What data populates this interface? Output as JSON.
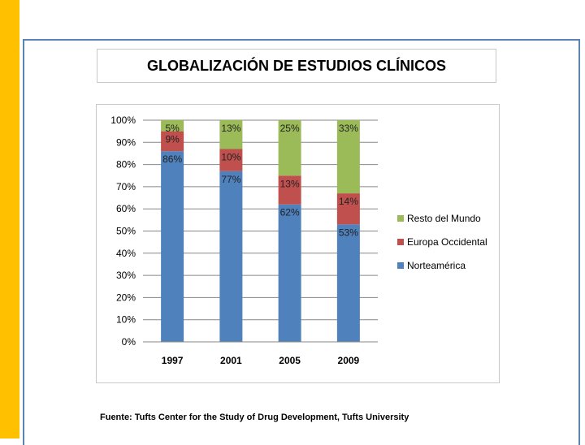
{
  "slide": {
    "title": "GLOBALIZACIÓN DE ESTUDIOS CLÍNICOS",
    "source": "Fuente: Tufts Center for the Study of Drug Development, Tufts University"
  },
  "colors": {
    "sidebar": "#FFC000",
    "frame": "#5B83B5"
  },
  "chart_data": {
    "type": "bar",
    "stacked": true,
    "title": "",
    "xlabel": "",
    "ylabel": "",
    "ylim": [
      0,
      100
    ],
    "yticks": [
      0,
      10,
      20,
      30,
      40,
      50,
      60,
      70,
      80,
      90,
      100
    ],
    "ytick_suffix": "%",
    "grid": true,
    "legend_position": "right",
    "categories": [
      "1997",
      "2001",
      "2005",
      "2009"
    ],
    "series": [
      {
        "name": "Norteamérica",
        "color": "#4F81BD",
        "values": [
          86,
          77,
          62,
          53
        ]
      },
      {
        "name": "Europa Occidental",
        "color": "#C0504D",
        "values": [
          9,
          10,
          13,
          14
        ]
      },
      {
        "name": "Resto del Mundo",
        "color": "#9BBB59",
        "values": [
          5,
          13,
          25,
          33
        ]
      }
    ],
    "legend_order": [
      "Resto del Mundo",
      "Europa Occidental",
      "Norteamérica"
    ],
    "label_suffix": "%"
  }
}
